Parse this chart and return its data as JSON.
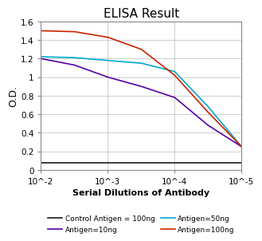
{
  "title": "ELISA Result",
  "xlabel": "Serial Dilutions of Antibody",
  "ylabel": "O.D.",
  "xlim": [
    -2,
    -5
  ],
  "ylim": [
    0,
    1.6
  ],
  "yticks": [
    0,
    0.2,
    0.4,
    0.6,
    0.8,
    1.0,
    1.2,
    1.4,
    1.6
  ],
  "ytick_labels": [
    "0",
    "0.2",
    "0.4",
    "0.6",
    "0.8",
    "1",
    "1.2",
    "1.4",
    "1.6"
  ],
  "xtick_positions": [
    -2,
    -3,
    -4,
    -5
  ],
  "xtick_labels": [
    "10^-2",
    "10^-3",
    "10^-4",
    "10^-5"
  ],
  "lines": [
    {
      "label": "Control Antigen = 100ng",
      "color": "#1a1a1a",
      "x": [
        -2,
        -2.5,
        -3,
        -3.5,
        -4,
        -4.5,
        -5
      ],
      "y": [
        0.08,
        0.08,
        0.08,
        0.08,
        0.08,
        0.08,
        0.08
      ]
    },
    {
      "label": "Antigen=10ng",
      "color": "#5500aa",
      "x": [
        -2,
        -2.5,
        -3,
        -3.5,
        -4,
        -4.5,
        -5
      ],
      "y": [
        1.2,
        1.13,
        1.0,
        0.9,
        0.78,
        0.48,
        0.25
      ]
    },
    {
      "label": "Antigen=50ng",
      "color": "#00aacc",
      "x": [
        -2,
        -2.5,
        -3,
        -3.5,
        -4,
        -4.5,
        -5
      ],
      "y": [
        1.22,
        1.21,
        1.18,
        1.15,
        1.06,
        0.68,
        0.25
      ]
    },
    {
      "label": "Antigen=100ng",
      "color": "#cc2200",
      "x": [
        -2,
        -2.5,
        -3,
        -3.5,
        -4,
        -4.5,
        -5
      ],
      "y": [
        1.5,
        1.49,
        1.43,
        1.3,
        1.02,
        0.62,
        0.25
      ]
    }
  ],
  "bg_color": "#ffffff",
  "grid_color": "#bbbbbb",
  "title_fontsize": 11,
  "axis_label_fontsize": 8,
  "tick_fontsize": 7.5,
  "legend_fontsize": 6.5
}
